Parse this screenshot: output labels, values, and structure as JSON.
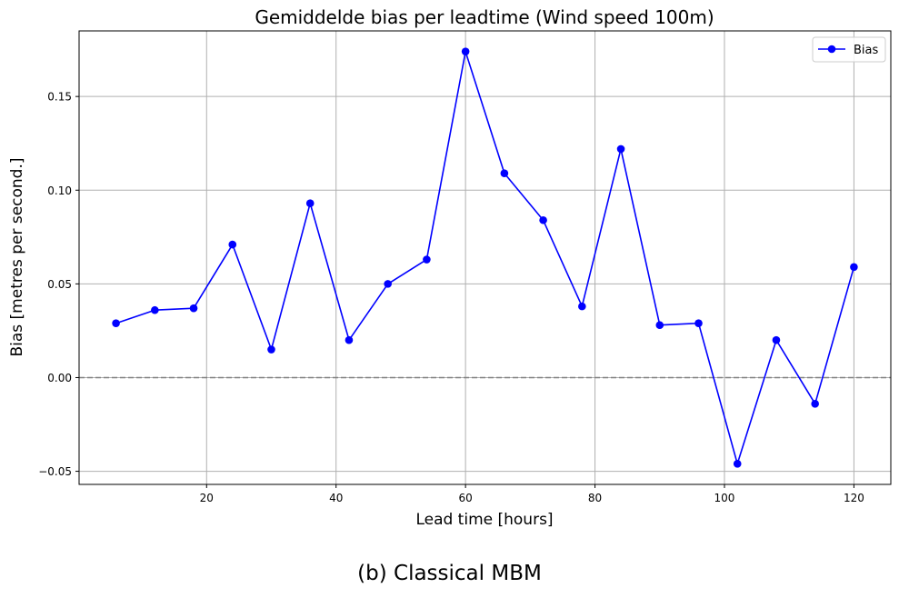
{
  "caption": "(b) Classical MBM",
  "chart_data": {
    "type": "line",
    "title": "Gemiddelde bias per leadtime (Wind speed 100m)",
    "xlabel": "Lead time [hours]",
    "ylabel": "Bias [metres per second.]",
    "xlim": [
      0.3,
      125.7
    ],
    "ylim": [
      -0.057,
      0.185
    ],
    "xticks": [
      20,
      40,
      60,
      80,
      100,
      120
    ],
    "xtick_labels": [
      "20",
      "40",
      "60",
      "80",
      "100",
      "120"
    ],
    "yticks": [
      -0.05,
      0.0,
      0.05,
      0.1,
      0.15
    ],
    "ytick_labels": [
      "−0.05",
      "0.00",
      "0.05",
      "0.10",
      "0.15"
    ],
    "grid": true,
    "legend": {
      "position": "top-right",
      "entries": [
        "Bias"
      ]
    },
    "reference_line": {
      "y": 0.0,
      "style": "dashed",
      "color": "#808080"
    },
    "series": [
      {
        "name": "Bias",
        "color": "#0000ff",
        "marker": "circle",
        "x": [
          6,
          12,
          18,
          24,
          30,
          36,
          42,
          48,
          54,
          60,
          66,
          72,
          78,
          84,
          90,
          96,
          102,
          108,
          114,
          120
        ],
        "y": [
          0.029,
          0.036,
          0.037,
          0.071,
          0.015,
          0.093,
          0.02,
          0.05,
          0.063,
          0.174,
          0.109,
          0.084,
          0.038,
          0.122,
          0.028,
          0.029,
          -0.046,
          0.02,
          -0.014,
          0.059
        ]
      }
    ]
  }
}
